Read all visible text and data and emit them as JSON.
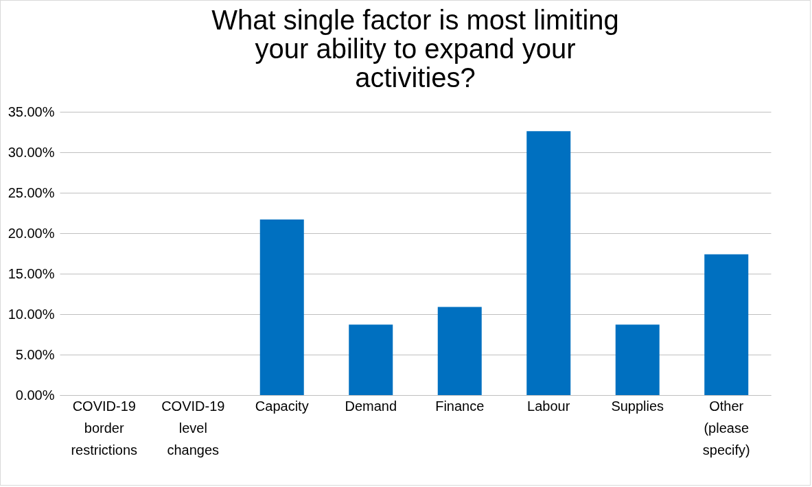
{
  "chart_data": {
    "type": "bar",
    "title": "What single factor is most limiting your ability to expand your activities?",
    "categories": [
      "COVID-19 border restrictions",
      "COVID-19 level changes",
      "Capacity",
      "Demand",
      "Finance",
      "Labour",
      "Supplies",
      "Other (please specify)"
    ],
    "values": [
      0,
      0,
      21.7,
      8.7,
      10.9,
      32.6,
      8.7,
      17.4
    ],
    "color": "#0070c0",
    "ylim": [
      0,
      35
    ],
    "yticks": [
      {
        "value": 0,
        "label": "0.00%"
      },
      {
        "value": 5,
        "label": "5.00%"
      },
      {
        "value": 10,
        "label": "10.00%"
      },
      {
        "value": 15,
        "label": "15.00%"
      },
      {
        "value": 20,
        "label": "20.00%"
      },
      {
        "value": 25,
        "label": "25.00%"
      },
      {
        "value": 30,
        "label": "30.00%"
      },
      {
        "value": 35,
        "label": "35.00%"
      }
    ],
    "grid": "y"
  }
}
